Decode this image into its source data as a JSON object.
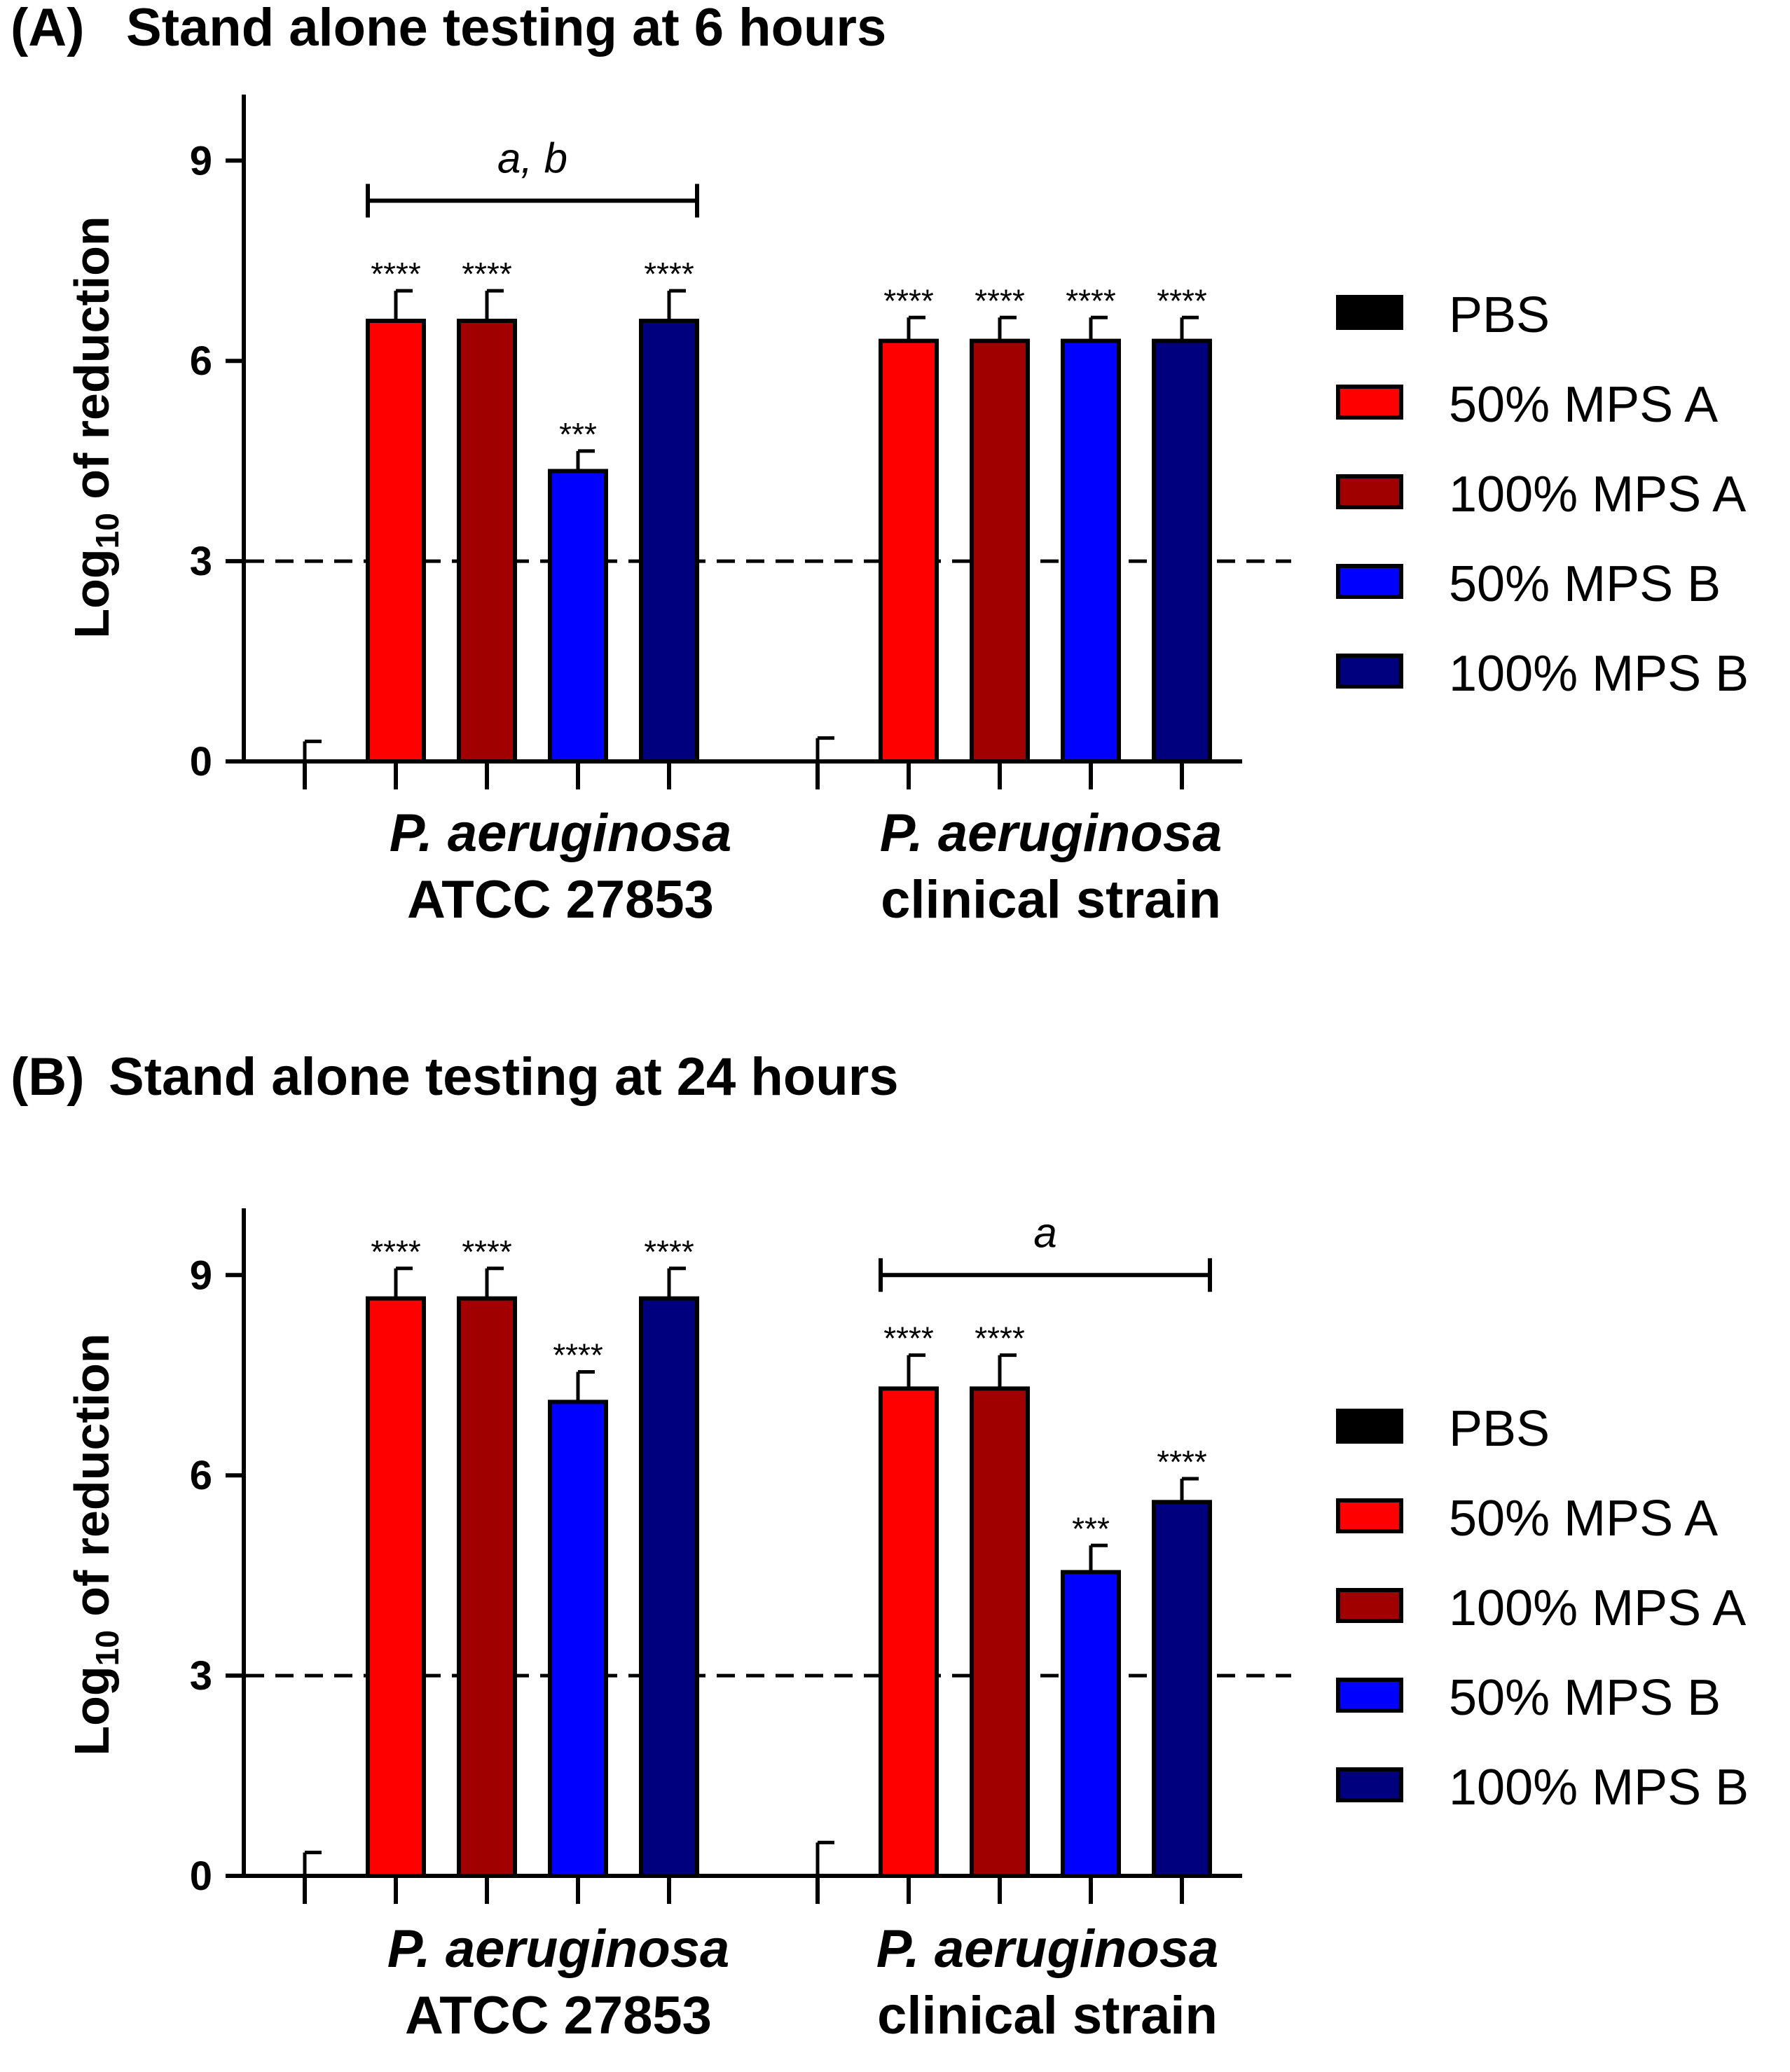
{
  "colors": {
    "PBS": "#000000",
    "50% MPS A": "#ff0000",
    "100% MPS A": "#a00000",
    "50% MPS B": "#0000ff",
    "100% MPS B": "#00007f"
  },
  "chart_data": [
    {
      "type": "bar",
      "panel_label": "(A)",
      "title": "Stand alone testing at 6 hours",
      "ylabel_main": "Log",
      "ylabel_sub": "10",
      "ylabel_rest": " of reduction",
      "ylim": [
        0,
        10
      ],
      "yticks": [
        "0",
        "3",
        "6",
        "9"
      ],
      "threshold": 3,
      "groups": [
        {
          "italic": "P. aeruginosa",
          "plain": "ATCC 27853"
        },
        {
          "italic": "P. aeruginosa",
          "plain": "clinical strain"
        }
      ],
      "series": [
        {
          "name": "PBS",
          "values": [
            0,
            0
          ],
          "errors": [
            0.3,
            0.35
          ],
          "stars": [
            "",
            ""
          ]
        },
        {
          "name": "50% MPS A",
          "values": [
            6.6,
            6.3
          ],
          "errors": [
            0.45,
            0.35
          ],
          "stars": [
            "****",
            "****"
          ]
        },
        {
          "name": "100% MPS A",
          "values": [
            6.6,
            6.3
          ],
          "errors": [
            0.45,
            0.35
          ],
          "stars": [
            "****",
            "****"
          ]
        },
        {
          "name": "50% MPS B",
          "values": [
            4.35,
            6.3
          ],
          "errors": [
            0.3,
            0.35
          ],
          "stars": [
            "***",
            "****"
          ]
        },
        {
          "name": "100% MPS B",
          "values": [
            6.6,
            6.3
          ],
          "errors": [
            0.45,
            0.35
          ],
          "stars": [
            "****",
            "****"
          ]
        }
      ],
      "annotation": {
        "text": "a, b",
        "group": 0,
        "from_series": 1,
        "to_series": 4,
        "y": 8.4
      },
      "legend": [
        "PBS",
        "50% MPS A",
        "100% MPS A",
        "50% MPS B",
        "100% MPS B"
      ]
    },
    {
      "type": "bar",
      "panel_label": "(B)",
      "title": "Stand alone testing at 24 hours",
      "ylabel_main": "Log",
      "ylabel_sub": "10",
      "ylabel_rest": " of reduction",
      "ylim": [
        0,
        10
      ],
      "yticks": [
        "0",
        "3",
        "6",
        "9"
      ],
      "threshold": 3,
      "groups": [
        {
          "italic": "P. aeruginosa",
          "plain": "ATCC 27853"
        },
        {
          "italic": "P. aeruginosa",
          "plain": "clinical strain"
        }
      ],
      "series": [
        {
          "name": "PBS",
          "values": [
            0,
            0
          ],
          "errors": [
            0.35,
            0.5
          ],
          "stars": [
            "",
            ""
          ]
        },
        {
          "name": "50% MPS A",
          "values": [
            8.65,
            7.3
          ],
          "errors": [
            0.45,
            0.5
          ],
          "stars": [
            "****",
            "****"
          ]
        },
        {
          "name": "100% MPS A",
          "values": [
            8.65,
            7.3
          ],
          "errors": [
            0.45,
            0.5
          ],
          "stars": [
            "****",
            "****"
          ]
        },
        {
          "name": "50% MPS B",
          "values": [
            7.1,
            4.55
          ],
          "errors": [
            0.45,
            0.4
          ],
          "stars": [
            "****",
            "***"
          ]
        },
        {
          "name": "100% MPS B",
          "values": [
            8.65,
            5.6
          ],
          "errors": [
            0.45,
            0.35
          ],
          "stars": [
            "****",
            "****"
          ]
        }
      ],
      "annotation": {
        "text": "a",
        "group": 1,
        "from_series": 1,
        "to_series": 4,
        "y": 9.0
      },
      "legend": [
        "PBS",
        "50% MPS A",
        "100% MPS A",
        "50% MPS B",
        "100% MPS B"
      ]
    }
  ]
}
